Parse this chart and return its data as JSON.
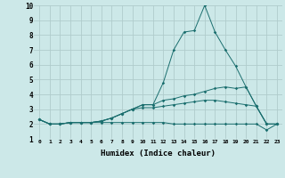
{
  "xlabel": "Humidex (Indice chaleur)",
  "ylabel": "",
  "background_color": "#cce8e8",
  "grid_color": "#b0cccc",
  "line_color": "#1a6e6e",
  "xlim": [
    -0.5,
    23.5
  ],
  "ylim": [
    1,
    10
  ],
  "yticks": [
    1,
    2,
    3,
    4,
    5,
    6,
    7,
    8,
    9,
    10
  ],
  "xticks": [
    0,
    1,
    2,
    3,
    4,
    5,
    6,
    7,
    8,
    9,
    10,
    11,
    12,
    13,
    14,
    15,
    16,
    17,
    18,
    19,
    20,
    21,
    22,
    23
  ],
  "series": [
    [
      2.3,
      2.0,
      2.0,
      2.1,
      2.1,
      2.1,
      2.2,
      2.4,
      2.7,
      3.0,
      3.3,
      3.3,
      4.8,
      7.0,
      8.2,
      8.3,
      10.0,
      8.2,
      7.0,
      5.9,
      4.5,
      3.2,
      2.0,
      2.0
    ],
    [
      2.3,
      2.0,
      2.0,
      2.1,
      2.1,
      2.1,
      2.2,
      2.4,
      2.7,
      3.0,
      3.3,
      3.3,
      3.6,
      3.7,
      3.9,
      4.0,
      4.2,
      4.4,
      4.5,
      4.4,
      4.5,
      3.2,
      2.0,
      2.0
    ],
    [
      2.3,
      2.0,
      2.0,
      2.1,
      2.1,
      2.1,
      2.2,
      2.4,
      2.7,
      3.0,
      3.1,
      3.1,
      3.2,
      3.3,
      3.4,
      3.5,
      3.6,
      3.6,
      3.5,
      3.4,
      3.3,
      3.2,
      2.0,
      2.0
    ],
    [
      2.3,
      2.0,
      2.0,
      2.1,
      2.1,
      2.1,
      2.1,
      2.1,
      2.1,
      2.1,
      2.1,
      2.1,
      2.1,
      2.0,
      2.0,
      2.0,
      2.0,
      2.0,
      2.0,
      2.0,
      2.0,
      2.0,
      1.6,
      2.0
    ]
  ]
}
